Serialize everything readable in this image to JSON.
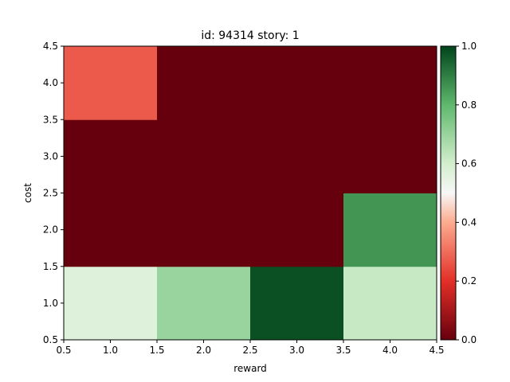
{
  "chart_data": {
    "type": "heatmap",
    "title": "id: 94314 story: 1",
    "xlabel": "reward",
    "ylabel": "cost",
    "xlim": [
      0.5,
      4.5
    ],
    "ylim": [
      0.5,
      4.5
    ],
    "x_ticks": [
      "0.5",
      "1.0",
      "1.5",
      "2.0",
      "2.5",
      "3.0",
      "3.5",
      "4.0",
      "4.5"
    ],
    "y_ticks": [
      "0.5",
      "1.0",
      "1.5",
      "2.0",
      "2.5",
      "3.0",
      "3.5",
      "4.0",
      "4.5"
    ],
    "x_centers": [
      1,
      2,
      3,
      4
    ],
    "y_centers": [
      1,
      2,
      3,
      4
    ],
    "values": [
      [
        0.57,
        0.7,
        0.98,
        0.62
      ],
      [
        0.0,
        0.0,
        0.0,
        0.86
      ],
      [
        0.0,
        0.0,
        0.0,
        0.0
      ],
      [
        0.27,
        0.0,
        0.0,
        0.0
      ]
    ],
    "colormap": "RdYlGn-like (red = 0, white = 0.5, green = 1)",
    "colorbar": {
      "range": [
        0.0,
        1.0
      ],
      "ticks": [
        "0.0",
        "0.2",
        "0.4",
        "0.6",
        "0.8",
        "1.0"
      ]
    }
  }
}
